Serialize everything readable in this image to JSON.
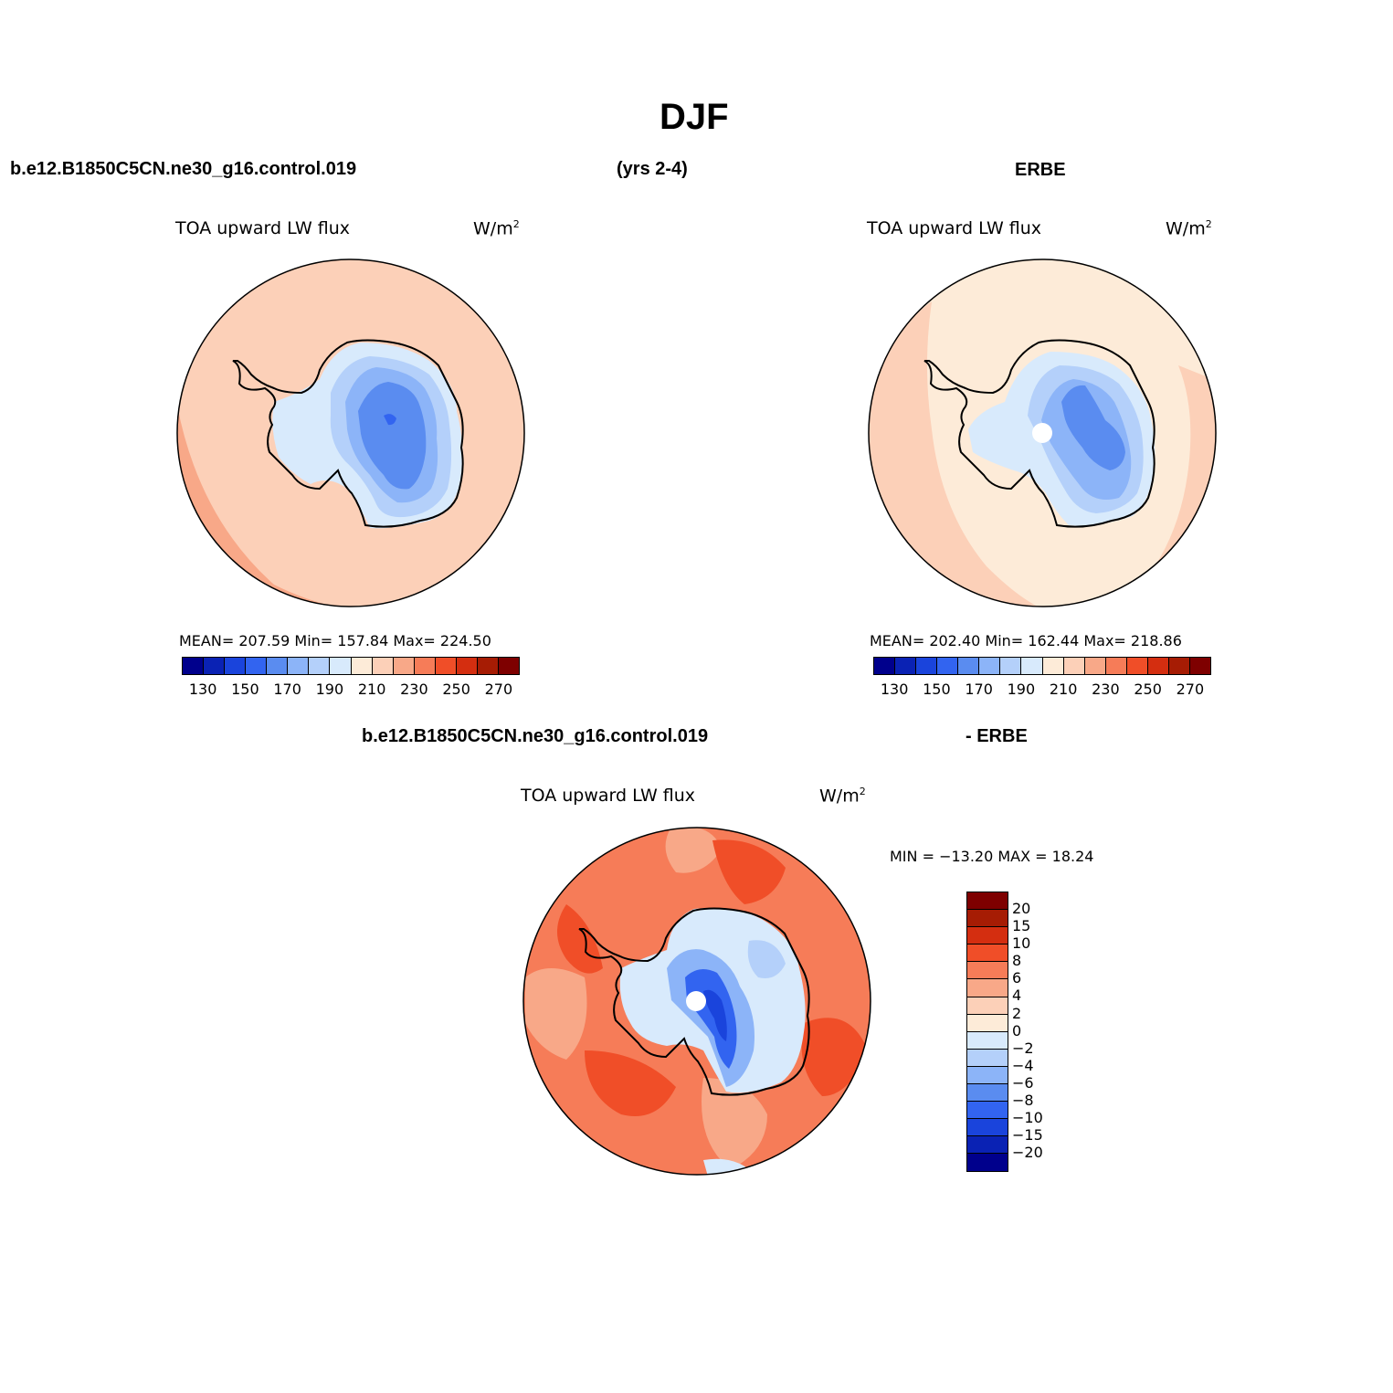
{
  "title": "DJF",
  "top_left_header": "b.e12.B1850C5CN.ne30_g16.control.019",
  "top_mid_header": "(yrs 2-4)",
  "top_right_header": "ERBE",
  "bottom_header_left": "b.e12.B1850C5CN.ne30_g16.control.019",
  "bottom_header_right": "- ERBE",
  "panels": [
    {
      "name": "TOA upward LW flux",
      "units": "W/m",
      "units_sup": "2",
      "stats": "MEAN= 207.59   Min= 157.84   Max= 224.50"
    },
    {
      "name": "TOA upward LW flux",
      "units": "W/m",
      "units_sup": "2",
      "stats": "MEAN= 202.40   Min= 162.44   Max= 218.86"
    },
    {
      "name": "TOA upward LW flux",
      "units": "W/m",
      "units_sup": "2",
      "stats": "MIN = −13.20 MAX =   18.24"
    }
  ],
  "abs_colorbar": {
    "colors": [
      "#00008c",
      "#0a22b4",
      "#1a44dc",
      "#3264f0",
      "#5a8cf0",
      "#8cb4f8",
      "#b4d0fa",
      "#d8eafc",
      "#fdebd8",
      "#fcd0b8",
      "#f8a888",
      "#f67c58",
      "#f04e28",
      "#d42e10",
      "#a61c04",
      "#7e0000"
    ],
    "labels": [
      "130",
      "150",
      "170",
      "190",
      "210",
      "230",
      "250",
      "270"
    ]
  },
  "diff_colorbar": {
    "colors": [
      "#7e0000",
      "#a61c04",
      "#d42e10",
      "#f04e28",
      "#f67c58",
      "#f8a888",
      "#fcd0b8",
      "#fdebd8",
      "#d8eafc",
      "#b4d0fa",
      "#8cb4f8",
      "#5a8cf0",
      "#3264f0",
      "#1a44dc",
      "#0a22b4",
      "#00008c"
    ],
    "labels": [
      "20",
      "15",
      "10",
      "8",
      "6",
      "4",
      "2",
      "0",
      "−2",
      "−4",
      "−6",
      "−8",
      "−10",
      "−15",
      "−20"
    ]
  },
  "map_colors": {
    "ocean_model": "#fcd0b8",
    "ocean_model_warm": "#f8a888",
    "ocean_obs": "#fdebd8",
    "ocean_obs_warm": "#fcd0b8",
    "ice_light": "#d8eafc",
    "ice_mid": "#b4d0fa",
    "ice_mid2": "#8cb4f8",
    "ice_core": "#5a8cf0",
    "ice_deep": "#3264f0",
    "diff_ocean": "#f67c58",
    "diff_hot": "#f04e28",
    "diff_warm": "#f8a888",
    "diff_deep": "#1a44dc"
  }
}
